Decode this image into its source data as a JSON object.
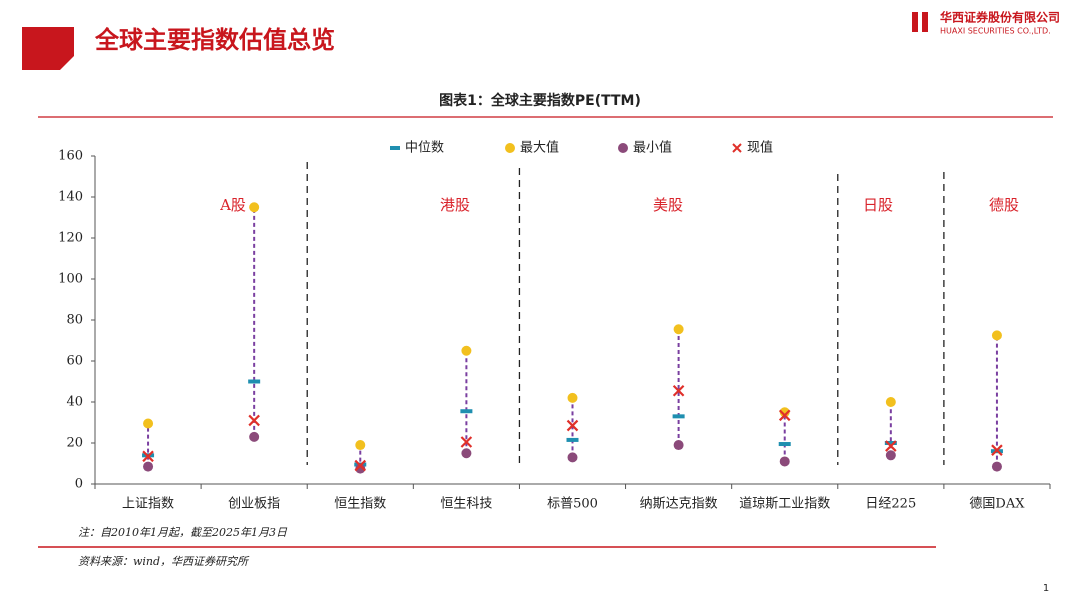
{
  "header": {
    "title": "全球主要指数估值总览",
    "company": "华西证券股份有限公司",
    "company_en": "HUAXI SECURITIES CO.,LTD."
  },
  "chart_data": {
    "type": "range-dot",
    "title": "图表1：全球主要指数PE(TTM)",
    "categories": [
      "上证指数",
      "创业板指",
      "恒生指数",
      "恒生科技",
      "标普500",
      "纳斯达克指数",
      "道琼斯工业指数",
      "日经225",
      "德国DAX"
    ],
    "series": [
      {
        "name": "中位数",
        "color": "#1f8fb0",
        "marker": "dash",
        "values": [
          14,
          50,
          9.5,
          35.5,
          21.5,
          33,
          19.5,
          20,
          16
        ]
      },
      {
        "name": "最大值",
        "color": "#f2c01e",
        "marker": "dot",
        "values": [
          29.5,
          135,
          19,
          65,
          42,
          75.5,
          35,
          40,
          72.5
        ]
      },
      {
        "name": "最小值",
        "color": "#8b4a7a",
        "marker": "dot",
        "values": [
          8.5,
          23,
          7.5,
          15,
          13,
          19,
          11,
          14,
          8.5
        ]
      },
      {
        "name": "现值",
        "color": "#e0302a",
        "marker": "cross",
        "values": [
          13.5,
          31,
          9,
          20.5,
          28.5,
          45.5,
          33.5,
          18.5,
          16.5
        ]
      }
    ],
    "range_color": "#7a3fa0",
    "annotations": [
      "A股",
      "港股",
      "美股",
      "日股",
      "德股"
    ],
    "ylim": [
      0,
      160
    ],
    "yticks": [
      0,
      20,
      40,
      60,
      80,
      100,
      120,
      140,
      160
    ]
  },
  "note": "注：自2010年1月起，截至2025年1月3日",
  "source": "资料来源：wind，华西证券研究所",
  "page_number": "1"
}
